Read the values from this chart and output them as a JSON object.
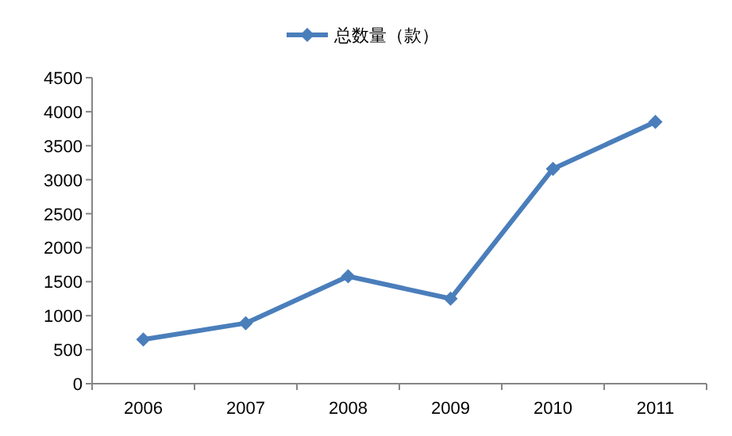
{
  "chart_data": {
    "type": "line",
    "categories": [
      "2006",
      "2007",
      "2008",
      "2009",
      "2010",
      "2011"
    ],
    "series": [
      {
        "name": "总数量（款）",
        "color": "#4a7ebb",
        "values": [
          650,
          890,
          1580,
          1250,
          3160,
          3850
        ]
      }
    ],
    "ylim": [
      0,
      4500
    ],
    "yticks": [
      0,
      500,
      1000,
      1500,
      2000,
      2500,
      3000,
      3500,
      4000,
      4500
    ],
    "marker": "diamond",
    "line_style": "solid",
    "legend": "top",
    "grid": false
  }
}
